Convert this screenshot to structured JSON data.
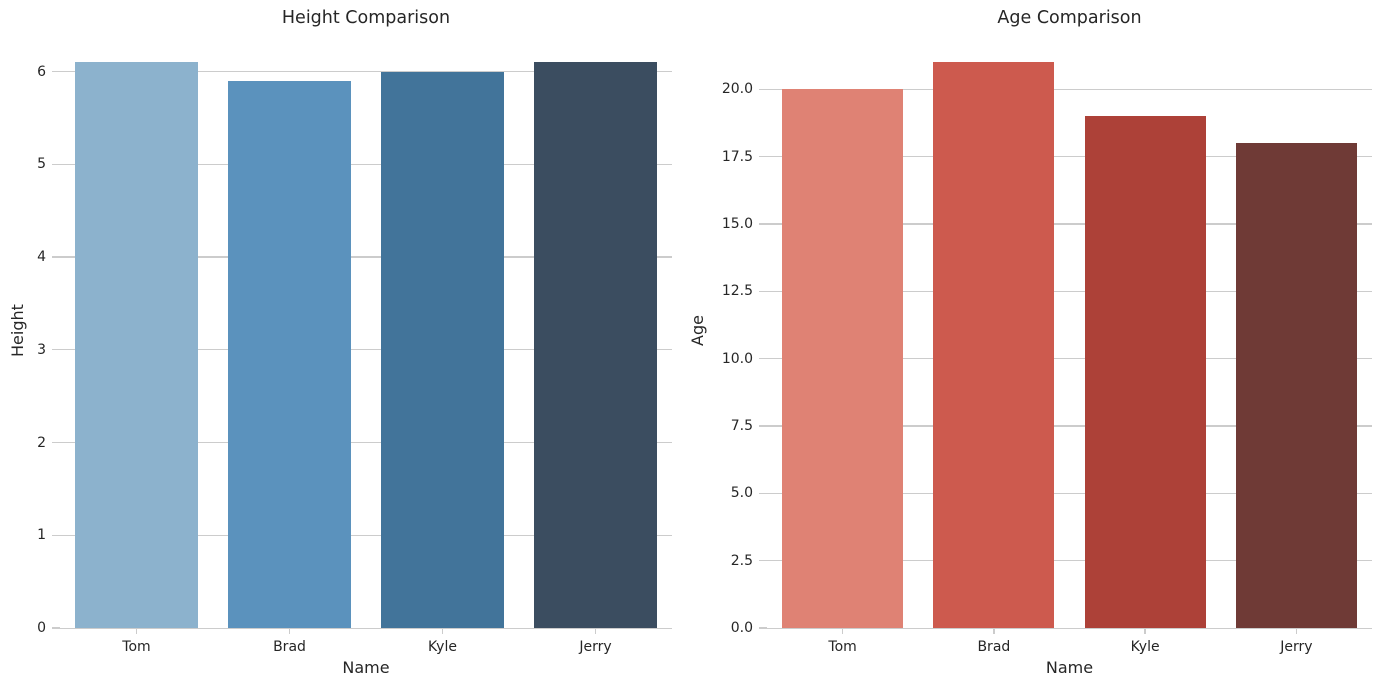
{
  "figure": {
    "background_color": "#ffffff",
    "grid_color": "#cccccc",
    "axis_line_color": "#cccccc",
    "text_color": "#262626"
  },
  "chart_data": [
    {
      "type": "bar",
      "title": "Height Comparison",
      "xlabel": "Name",
      "ylabel": "Height",
      "categories": [
        "Tom",
        "Brad",
        "Kyle",
        "Jerry"
      ],
      "values": [
        6.1,
        5.9,
        6.0,
        6.1
      ],
      "ylim": [
        0,
        6.405
      ],
      "yticks": [
        0,
        1,
        2,
        3,
        4,
        5,
        6
      ],
      "ytick_labels": [
        "0",
        "1",
        "2",
        "3",
        "4",
        "5",
        "6"
      ],
      "bar_colors": [
        "#8cb2cd",
        "#5b92bd",
        "#42749a",
        "#3b4d60"
      ],
      "grid": true,
      "legend": "none"
    },
    {
      "type": "bar",
      "title": "Age Comparison",
      "xlabel": "Name",
      "ylabel": "Age",
      "categories": [
        "Tom",
        "Brad",
        "Kyle",
        "Jerry"
      ],
      "values": [
        20,
        21,
        19,
        18
      ],
      "ylim": [
        0,
        22.05
      ],
      "yticks": [
        0,
        2.5,
        5,
        7.5,
        10,
        12.5,
        15,
        17.5,
        20
      ],
      "ytick_labels": [
        "0.0",
        "2.5",
        "5.0",
        "7.5",
        "10.0",
        "12.5",
        "15.0",
        "17.5",
        "20.0"
      ],
      "bar_colors": [
        "#df8274",
        "#cd5a4e",
        "#ad4138",
        "#6f3a36"
      ],
      "grid": true,
      "legend": "none"
    }
  ]
}
